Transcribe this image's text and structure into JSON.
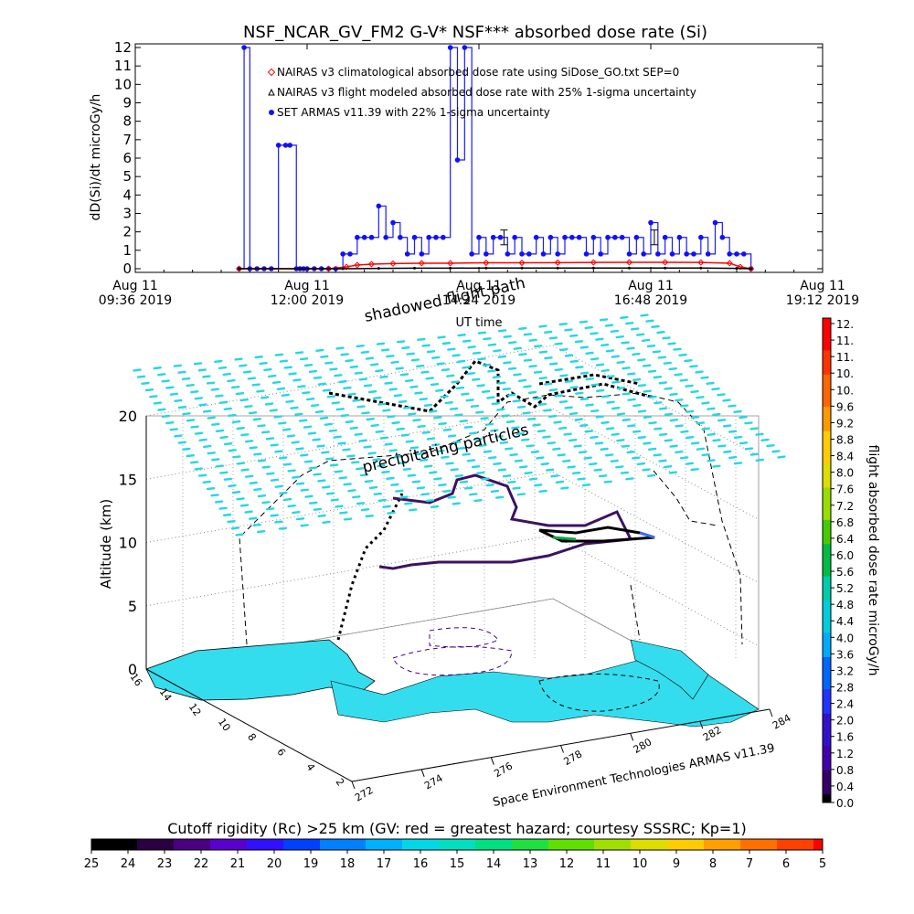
{
  "chart_data": [
    {
      "type": "line",
      "title": "NSF_NCAR_GV_FM2 G-V* NSF*** absorbed dose rate (Si)",
      "ylabel": "dD(Si)/dt microGy/h",
      "xlabel": "UT time",
      "ylim": [
        0,
        12
      ],
      "yticks": [
        "0",
        "1",
        "2",
        "3",
        "4",
        "5",
        "6",
        "7",
        "8",
        "9",
        "10",
        "11",
        "12"
      ],
      "xticks": [
        {
          "line1": "Aug 11",
          "line2": "09:36 2019"
        },
        {
          "line1": "Aug 11",
          "line2": "12:00 2019"
        },
        {
          "line1": "Aug 11",
          "line2": "14:24 2019"
        },
        {
          "line1": "Aug 11",
          "line2": "16:48 2019"
        },
        {
          "line1": "Aug 11",
          "line2": "19:12 2019"
        }
      ],
      "legend": [
        {
          "label": "NAIRAS v3 climatological absorbed dose rate using SiDose_GO.txt SEP=0",
          "color": "#ff0000",
          "marker": "diamond"
        },
        {
          "label": "NAIRAS v3 flight modeled absorbed dose rate with 25% 1-sigma uncertainty",
          "color": "#000000",
          "marker": "triangle"
        },
        {
          "label": "SET ARMAS v11.39 with 22% 1-sigma uncertainty",
          "color": "#0000ff",
          "marker": "circle"
        }
      ],
      "legend_position": "top-center",
      "series": [
        {
          "name": "SET ARMAS v11.39 with 22% 1-sigma uncertainty",
          "color": "#0000ff",
          "x": [
            11.05,
            11.12,
            11.2,
            11.3,
            11.4,
            11.5,
            11.6,
            11.7,
            11.76,
            11.85,
            11.9,
            11.95,
            12.0,
            12.1,
            12.2,
            12.3,
            12.4,
            12.5,
            12.6,
            12.7,
            12.8,
            12.9,
            13.0,
            13.1,
            13.2,
            13.3,
            13.4,
            13.5,
            13.6,
            13.7,
            13.8,
            13.9,
            14.0,
            14.1,
            14.2,
            14.3,
            14.4,
            14.5,
            14.6,
            14.7,
            14.8,
            14.9,
            15.0,
            15.1,
            15.2,
            15.3,
            15.4,
            15.5,
            15.6,
            15.7,
            15.8,
            15.9,
            16.0,
            16.1,
            16.2,
            16.3,
            16.4,
            16.5,
            16.6,
            16.7,
            16.8,
            16.9,
            17.0,
            17.1,
            17.2,
            17.3,
            17.4,
            17.5,
            17.6,
            17.7,
            17.8,
            17.9,
            18.0,
            18.1,
            18.2
          ],
          "y": [
            0,
            12,
            0,
            0,
            0,
            0,
            6.7,
            6.7,
            6.7,
            0,
            0,
            0,
            0,
            0,
            0,
            0,
            0,
            0.8,
            0.8,
            1.7,
            1.7,
            1.7,
            3.4,
            1.7,
            2.5,
            1.7,
            0.8,
            1.7,
            0.8,
            1.7,
            1.7,
            1.7,
            12,
            5.9,
            12,
            0.8,
            1.7,
            0.8,
            1.7,
            1.7,
            0.8,
            1.7,
            0.8,
            0.8,
            1.7,
            0.8,
            1.7,
            0.8,
            1.7,
            1.7,
            1.7,
            0.8,
            1.7,
            0.8,
            1.7,
            1.7,
            1.7,
            0.8,
            1.7,
            0.8,
            2.5,
            0.8,
            1.7,
            0.8,
            1.7,
            0.8,
            0.8,
            1.7,
            0.8,
            2.5,
            1.7,
            0.8,
            0.8,
            0.8,
            0
          ]
        },
        {
          "name": "NAIRAS v3 climatological absorbed dose rate using SiDose_GO.txt SEP=0",
          "color": "#ff0000",
          "x": [
            11.05,
            12.3,
            12.55,
            12.7,
            12.9,
            13.2,
            13.6,
            14.0,
            14.5,
            15.0,
            15.5,
            16.0,
            16.5,
            17.0,
            17.5,
            17.9,
            18.05,
            18.2
          ],
          "y": [
            0,
            0,
            0.1,
            0.2,
            0.25,
            0.28,
            0.3,
            0.3,
            0.32,
            0.32,
            0.33,
            0.34,
            0.35,
            0.35,
            0.34,
            0.3,
            0.1,
            0
          ]
        },
        {
          "name": "NAIRAS v3 flight modeled absorbed dose rate with 25% 1-sigma uncertainty",
          "color": "#000000",
          "x": [
            11.05,
            12.5,
            13.0,
            13.5,
            14.0,
            14.5,
            15.0,
            15.5,
            16.0,
            16.5,
            17.0,
            17.5,
            18.0,
            18.2
          ],
          "y": [
            0,
            0,
            0.02,
            0.03,
            0.03,
            0.04,
            0.04,
            0.04,
            0.04,
            0.04,
            0.04,
            0.04,
            0.02,
            0
          ]
        }
      ],
      "error_bars": [
        {
          "x": 14.75,
          "y": 1.7,
          "low": 1.3,
          "high": 2.1
        },
        {
          "x": 16.85,
          "y": 1.7,
          "low": 1.3,
          "high": 2.1
        }
      ]
    },
    {
      "type": "scatter",
      "subtype": "3d-trajectory",
      "zlabel": "Altitude (km)",
      "zticks": [
        "0",
        "5",
        "10",
        "15",
        "20"
      ],
      "xticks": [
        "272",
        "274",
        "276",
        "278",
        "280",
        "282",
        "284"
      ],
      "yticks": [
        "16",
        "14",
        "12",
        "10",
        "8",
        "6",
        "4",
        "2"
      ],
      "colorbar": {
        "label": "flight absorbed dose rate microGy/h",
        "ticks": [
          "12.",
          "11.",
          "11.",
          "10.",
          "10.",
          "9.6",
          "9.2",
          "8.8",
          "8.4",
          "8.0",
          "7.6",
          "7.2",
          "6.8",
          "6.4",
          "6.0",
          "5.6",
          "5.2",
          "4.8",
          "4.4",
          "4.0",
          "3.6",
          "3.2",
          "2.8",
          "2.4",
          "2.0",
          "1.6",
          "1.2",
          "0.8",
          "0.4",
          "0.0"
        ]
      },
      "annotations": [
        "shadowed flight path",
        "precipitating particles"
      ],
      "credit": "Space Environment Technologies ARMAS v11.39"
    },
    {
      "type": "heatmap",
      "subtype": "colorbar",
      "title": "Cutoff rigidity (Rc) >25 km (GV: red = greatest hazard; courtesy SSSRC; Kp=1)",
      "ticks": [
        "25",
        "24",
        "23",
        "22",
        "21",
        "20",
        "19",
        "18",
        "17",
        "16",
        "15",
        "14",
        "13",
        "12",
        "11",
        "10",
        "9",
        "8",
        "7",
        "6",
        "5"
      ]
    }
  ]
}
